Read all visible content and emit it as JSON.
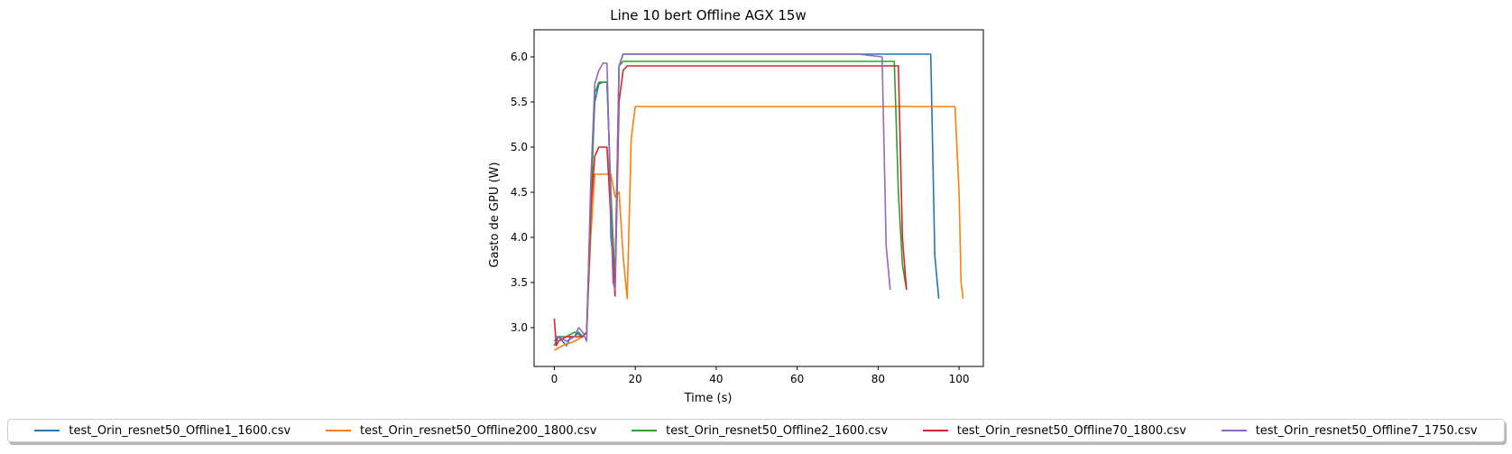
{
  "chart_data": {
    "type": "line",
    "title": "Line 10 bert Offline AGX 15w",
    "xlabel": "Time (s)",
    "ylabel": "Gasto de GPU (W)",
    "xlim": [
      -5,
      106
    ],
    "ylim": [
      2.57,
      6.3
    ],
    "xticks": [
      0,
      20,
      40,
      60,
      80,
      100
    ],
    "yticks": [
      3.0,
      3.5,
      4.0,
      4.5,
      5.0,
      5.5,
      6.0
    ],
    "xtick_labels": [
      "0",
      "20",
      "40",
      "60",
      "80",
      "100"
    ],
    "ytick_labels": [
      "3.0",
      "3.5",
      "4.0",
      "4.5",
      "5.0",
      "5.5",
      "6.0"
    ],
    "grid": false,
    "legend_position": "bottom-center",
    "series": [
      {
        "name": "test_Orin_resnet50_Offline1_1600.csv",
        "color": "#1f77b4",
        "x": [
          0,
          0.5,
          1,
          3,
          4,
          5,
          6,
          7,
          8,
          9,
          10,
          11,
          12,
          13,
          13.5,
          14,
          15,
          16,
          17,
          30,
          50,
          70,
          90,
          93,
          94,
          95
        ],
        "y": [
          2.8,
          2.85,
          2.9,
          2.8,
          2.9,
          2.9,
          2.95,
          2.9,
          2.95,
          4.5,
          5.5,
          5.7,
          5.72,
          5.72,
          5.1,
          4.0,
          3.5,
          5.9,
          6.03,
          6.03,
          6.03,
          6.03,
          6.03,
          6.03,
          3.8,
          3.32
        ]
      },
      {
        "name": "test_Orin_resnet50_Offline200_1800.csv",
        "color": "#ff7f0e",
        "x": [
          0,
          2,
          5,
          7,
          8,
          9,
          10,
          11,
          13,
          14,
          15,
          16,
          17,
          18,
          19,
          20,
          30,
          40,
          50,
          60,
          70,
          80,
          90,
          99,
          100,
          100.5,
          101
        ],
        "y": [
          2.75,
          2.8,
          2.85,
          2.9,
          2.95,
          4.0,
          4.7,
          4.7,
          4.7,
          4.7,
          4.45,
          4.5,
          3.8,
          3.32,
          5.1,
          5.45,
          5.45,
          5.45,
          5.45,
          5.45,
          5.45,
          5.45,
          5.45,
          5.45,
          4.5,
          3.5,
          3.32
        ]
      },
      {
        "name": "test_Orin_resnet50_Offline2_1600.csv",
        "color": "#2ca02c",
        "x": [
          0,
          1,
          3,
          5,
          7,
          8,
          9,
          10,
          11,
          12,
          13,
          14,
          15,
          16,
          17,
          18,
          30,
          50,
          70,
          84,
          85,
          86,
          87
        ],
        "y": [
          2.85,
          2.9,
          2.9,
          2.95,
          2.9,
          2.95,
          4.2,
          5.6,
          5.72,
          5.72,
          5.72,
          4.5,
          3.5,
          5.9,
          5.95,
          5.95,
          5.95,
          5.95,
          5.95,
          5.95,
          4.5,
          3.7,
          3.42
        ]
      },
      {
        "name": "test_Orin_resnet50_Offline70_1800.csv",
        "color": "#d62728",
        "x": [
          0,
          0.5,
          1,
          3,
          5,
          7,
          8,
          9,
          10,
          11,
          12,
          13,
          14,
          15,
          16,
          17,
          18,
          30,
          50,
          70,
          85,
          86,
          87
        ],
        "y": [
          3.1,
          2.8,
          2.85,
          2.9,
          2.9,
          2.9,
          2.95,
          4.3,
          4.9,
          5.0,
          5.0,
          5.0,
          4.2,
          3.35,
          5.5,
          5.85,
          5.9,
          5.9,
          5.9,
          5.9,
          5.9,
          4.0,
          3.42
        ]
      },
      {
        "name": "test_Orin_resnet50_Offline7_1750.csv",
        "color": "#9467bd",
        "x": [
          0,
          1,
          3,
          5,
          6,
          7,
          8,
          9,
          10,
          11,
          12,
          13,
          14,
          14.5,
          15,
          16,
          17,
          30,
          42,
          48,
          60,
          75,
          81,
          82,
          83
        ],
        "y": [
          2.9,
          2.9,
          2.85,
          2.9,
          3.0,
          2.95,
          2.85,
          4.6,
          5.7,
          5.85,
          5.93,
          5.93,
          4.3,
          3.5,
          3.42,
          5.9,
          6.03,
          6.03,
          6.03,
          6.03,
          6.03,
          6.03,
          6.0,
          3.9,
          3.42
        ]
      }
    ]
  }
}
